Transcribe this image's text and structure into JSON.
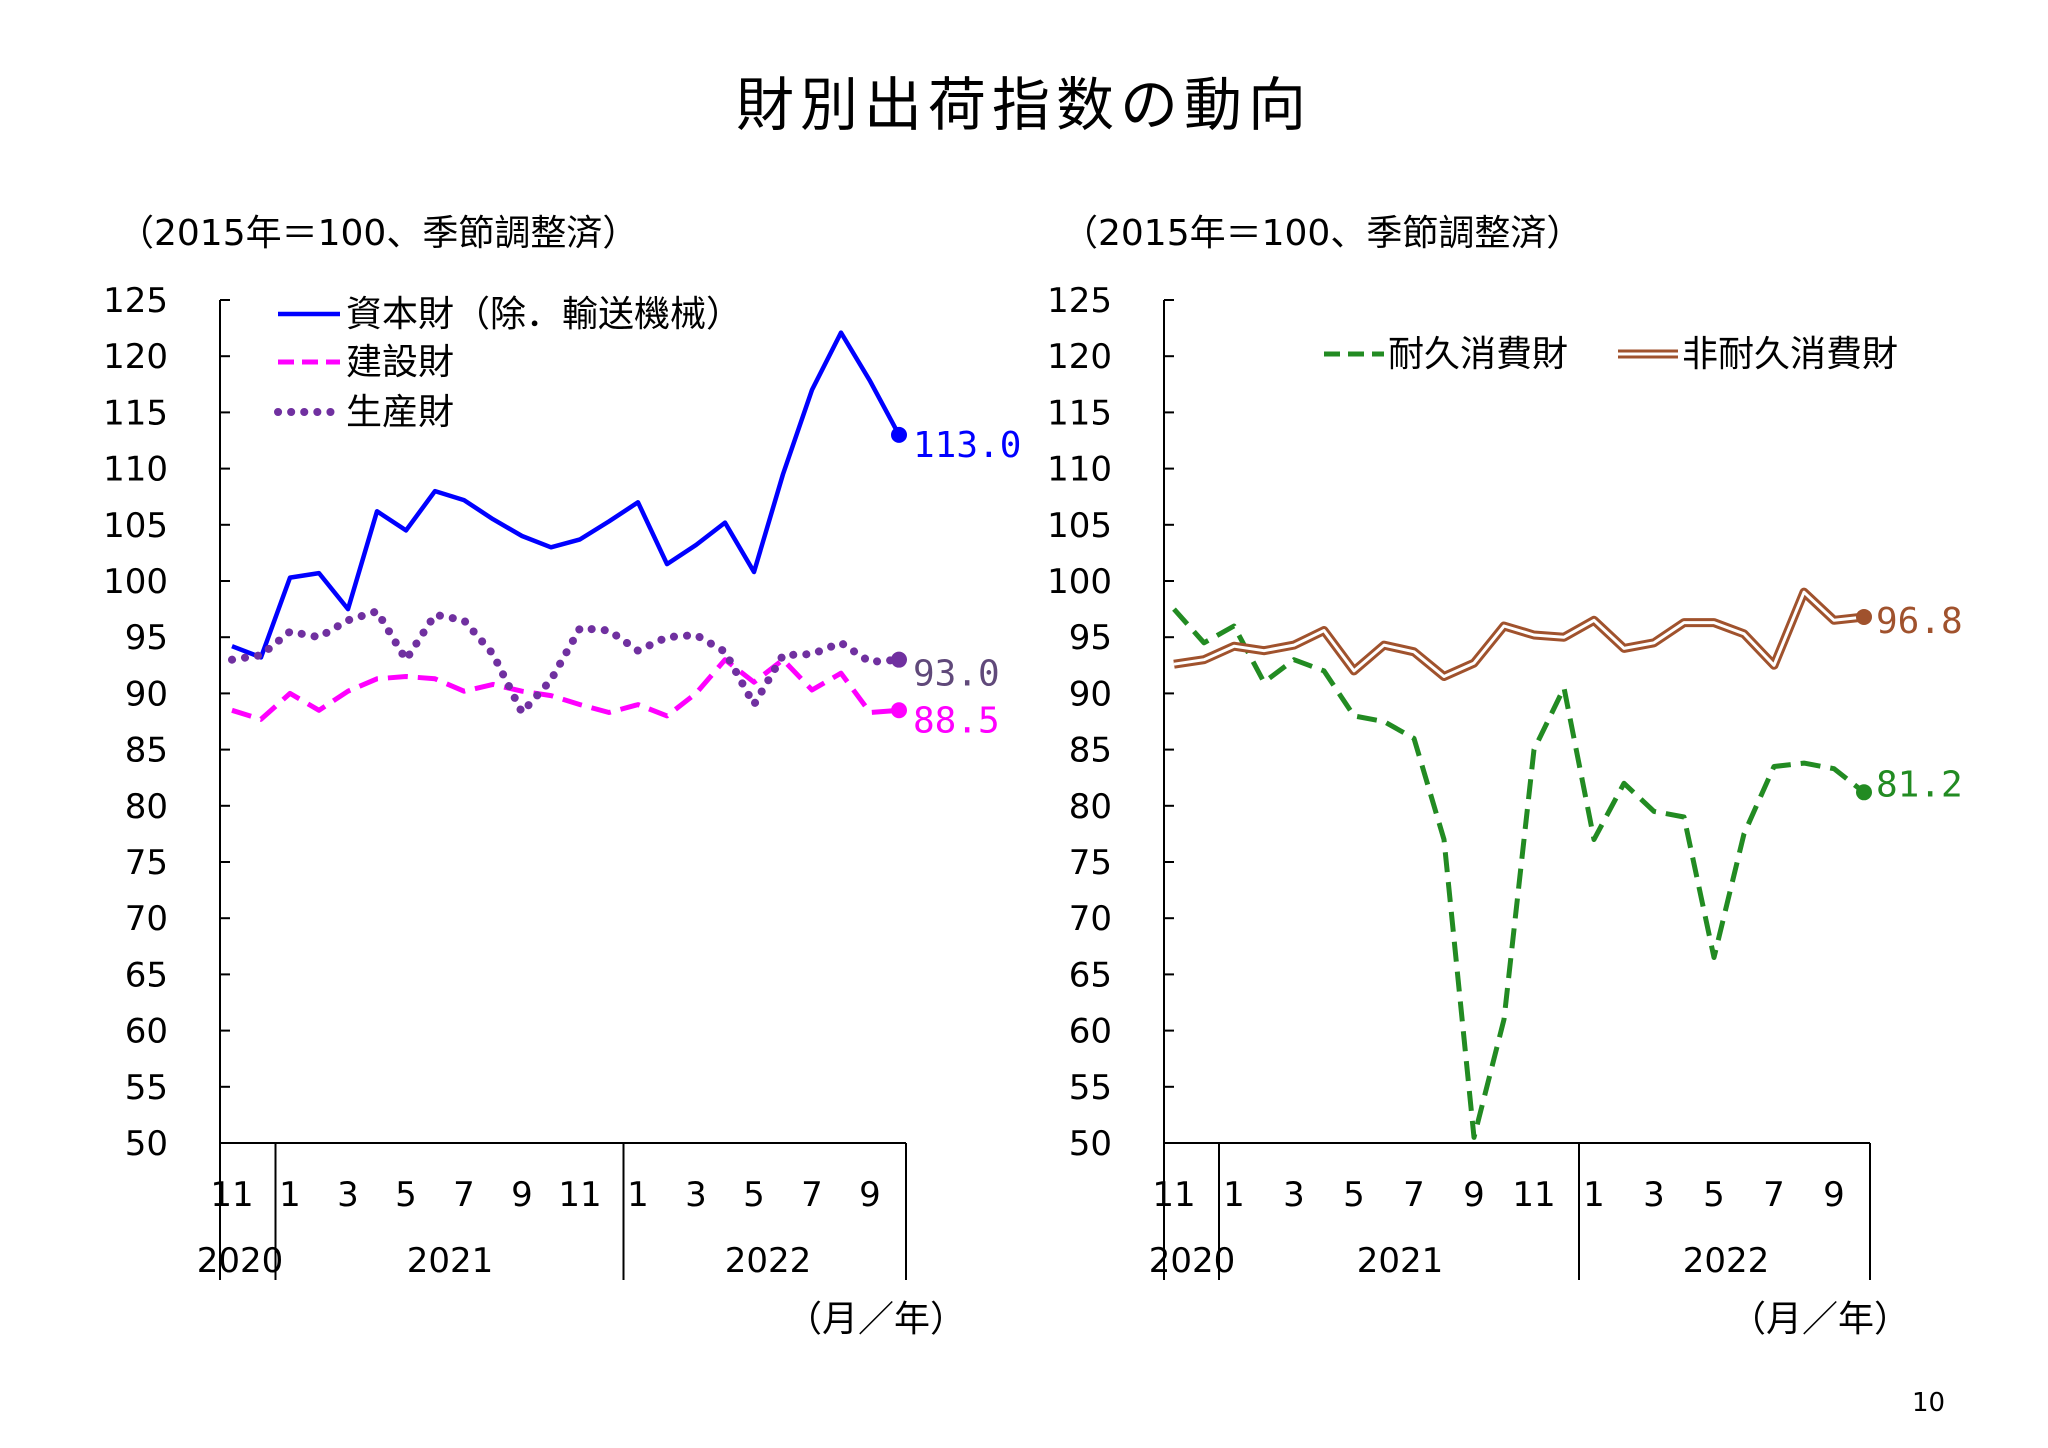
{
  "page_title": "財別出荷指数の動向",
  "page_number": "10",
  "colors": {
    "capital": "#0000ff",
    "construction": "#ff00ff",
    "producer": "#7030a0",
    "producer_label": "#60497a",
    "durable": "#228b22",
    "nondurable": "#a0522d"
  },
  "chart_data": [
    {
      "type": "line",
      "title": "",
      "unit_note": "（2015年＝100、季節調整済）",
      "xlabel": "（月／年）",
      "ylabel": "",
      "ylim": [
        50,
        125
      ],
      "yticks": [
        50,
        55,
        60,
        65,
        70,
        75,
        80,
        85,
        90,
        95,
        100,
        105,
        110,
        115,
        120,
        125
      ],
      "grid": false,
      "legend_position": "top-left",
      "month_ticks": [
        "11",
        "1",
        "3",
        "5",
        "7",
        "9",
        "11",
        "1",
        "3",
        "5",
        "7",
        "9"
      ],
      "year_labels": [
        "2020",
        "2021",
        "2022"
      ],
      "x": [
        "2020-11",
        "2020-12",
        "2021-01",
        "2021-02",
        "2021-03",
        "2021-04",
        "2021-05",
        "2021-06",
        "2021-07",
        "2021-08",
        "2021-09",
        "2021-10",
        "2021-11",
        "2021-12",
        "2022-01",
        "2022-02",
        "2022-03",
        "2022-04",
        "2022-05",
        "2022-06",
        "2022-07",
        "2022-08",
        "2022-09",
        "2022-10"
      ],
      "series": [
        {
          "name": "資本財（除．輸送機械）",
          "style": "solid",
          "color_key": "capital",
          "end_label": "113.0",
          "values": [
            94.2,
            93.2,
            100.3,
            100.7,
            97.5,
            106.2,
            104.5,
            108.0,
            107.2,
            105.5,
            104.0,
            103.0,
            103.7,
            105.3,
            107.0,
            101.5,
            103.2,
            105.2,
            100.8,
            109.5,
            117.0,
            122.1,
            117.8,
            113.0
          ]
        },
        {
          "name": "建設財",
          "style": "dashed",
          "color_key": "construction",
          "end_label": "88.5",
          "values": [
            88.5,
            87.7,
            90.0,
            88.5,
            90.2,
            91.3,
            91.5,
            91.3,
            90.2,
            90.8,
            90.2,
            89.8,
            89.0,
            88.3,
            89.0,
            88.0,
            90.0,
            93.0,
            91.0,
            93.0,
            90.3,
            91.8,
            88.3,
            88.5
          ]
        },
        {
          "name": "生産財",
          "style": "dotted",
          "color_key": "producer",
          "end_label": "93.0",
          "values": [
            93.0,
            93.4,
            95.5,
            95.0,
            96.5,
            97.3,
            93.0,
            97.0,
            96.5,
            93.5,
            88.3,
            91.2,
            95.8,
            95.6,
            93.8,
            95.0,
            95.2,
            93.7,
            89.0,
            93.4,
            93.5,
            94.5,
            92.8,
            93.0
          ]
        }
      ]
    },
    {
      "type": "line",
      "title": "",
      "unit_note": "（2015年＝100、季節調整済）",
      "xlabel": "（月／年）",
      "ylabel": "",
      "ylim": [
        50,
        125
      ],
      "yticks": [
        50,
        55,
        60,
        65,
        70,
        75,
        80,
        85,
        90,
        95,
        100,
        105,
        110,
        115,
        120,
        125
      ],
      "grid": false,
      "legend_position": "top-right",
      "month_ticks": [
        "11",
        "1",
        "3",
        "5",
        "7",
        "9",
        "11",
        "1",
        "3",
        "5",
        "7",
        "9"
      ],
      "year_labels": [
        "2020",
        "2021",
        "2022"
      ],
      "x": [
        "2020-11",
        "2020-12",
        "2021-01",
        "2021-02",
        "2021-03",
        "2021-04",
        "2021-05",
        "2021-06",
        "2021-07",
        "2021-08",
        "2021-09",
        "2021-10",
        "2021-11",
        "2021-12",
        "2022-01",
        "2022-02",
        "2022-03",
        "2022-04",
        "2022-05",
        "2022-06",
        "2022-07",
        "2022-08",
        "2022-09",
        "2022-10"
      ],
      "series": [
        {
          "name": "耐久消費財",
          "style": "dashed",
          "color_key": "durable",
          "end_label": "81.2",
          "values": [
            97.5,
            94.5,
            96.0,
            91.0,
            93.0,
            92.0,
            88.0,
            87.5,
            86.0,
            77.0,
            50.5,
            61.0,
            85.0,
            90.5,
            77.0,
            82.0,
            79.5,
            79.0,
            66.5,
            77.5,
            83.5,
            83.8,
            83.3,
            81.2
          ]
        },
        {
          "name": "非耐久消費財",
          "style": "double",
          "color_key": "nondurable",
          "end_label": "96.8",
          "values": [
            92.6,
            93.0,
            94.2,
            93.8,
            94.3,
            95.6,
            92.0,
            94.3,
            93.7,
            91.5,
            92.7,
            96.0,
            95.2,
            95.0,
            96.5,
            94.0,
            94.5,
            96.3,
            96.3,
            95.3,
            92.5,
            99.0,
            96.5,
            96.8
          ]
        }
      ]
    }
  ]
}
